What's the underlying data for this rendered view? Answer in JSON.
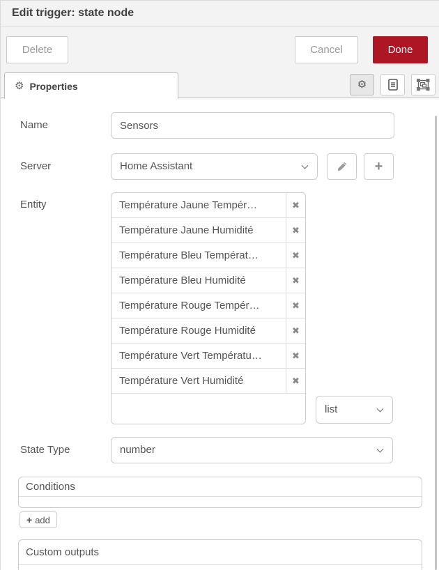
{
  "title": "Edit trigger: state node",
  "buttons": {
    "delete": "Delete",
    "cancel": "Cancel",
    "done": "Done"
  },
  "tab": {
    "label": "Properties"
  },
  "form": {
    "name": {
      "label": "Name",
      "value": "Sensors"
    },
    "server": {
      "label": "Server",
      "value": "Home Assistant"
    },
    "entity": {
      "label": "Entity",
      "items": [
        "Température Jaune Tempér…",
        "Température Jaune Humidité",
        "Température Bleu Températ…",
        "Température Bleu Humidité",
        "Température Rouge Tempér…",
        "Température Rouge Humidité",
        "Température Vert Températu…",
        "Température Vert Humidité"
      ],
      "new_item_value": "",
      "mode_select": "list"
    },
    "state_type": {
      "label": "State Type",
      "value": "number"
    },
    "conditions": {
      "header": "Conditions",
      "add_button": "add"
    },
    "custom_outputs": {
      "header": "Custom outputs"
    }
  },
  "icons": {
    "gear": "⚙",
    "remove": "✖",
    "plus": "+"
  },
  "colors": {
    "accent_red": "#AD1625",
    "chrome_bg": "#f3f3f3",
    "border": "#cccccc",
    "text": "#555555"
  }
}
